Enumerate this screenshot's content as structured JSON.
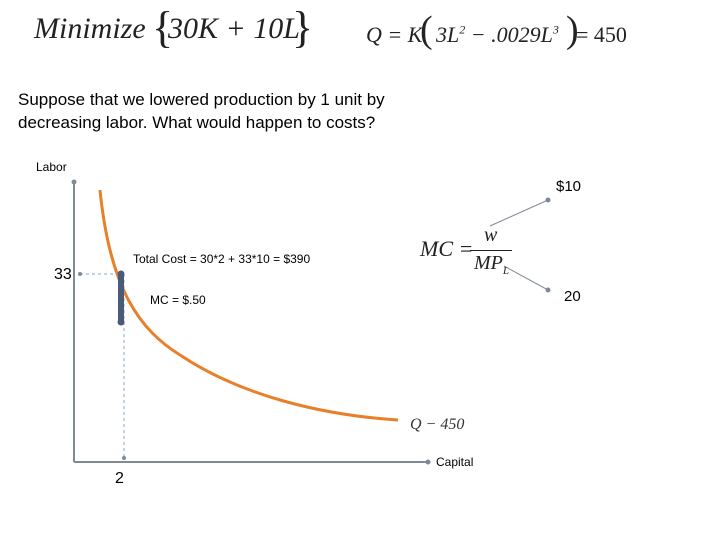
{
  "objective": {
    "prefix": "Minimize",
    "expression": "30K + 10L"
  },
  "constraint": {
    "lhs": "Q = K",
    "term1": "3L",
    "term1_exp": "2",
    "term2": " − .0029L",
    "term2_exp": "3",
    "rhs": "= 450"
  },
  "intro_lines": [
    "Suppose that we lowered production by 1 unit by",
    "decreasing labor. What would happen to costs?"
  ],
  "graph": {
    "y_axis_label": "Labor",
    "x_axis_label": "Capital",
    "y_marker_label": "33",
    "x_marker_label": "2",
    "total_cost_text": "Total Cost = 30*2 + 33*10 = $390",
    "mc_text": "MC = $.50",
    "wage_label": "$10",
    "mp_label": "20",
    "isoquant_label": "Q − 450",
    "curve_color": "#E8802A",
    "axis_color": "#7f8a96",
    "bar_color": "#4a5a78",
    "dashed_color": "#8aa6c8"
  },
  "mc_formula": {
    "lhs": "MC =",
    "numerator": "w",
    "denominator": "MP",
    "denominator_sub": "L"
  }
}
